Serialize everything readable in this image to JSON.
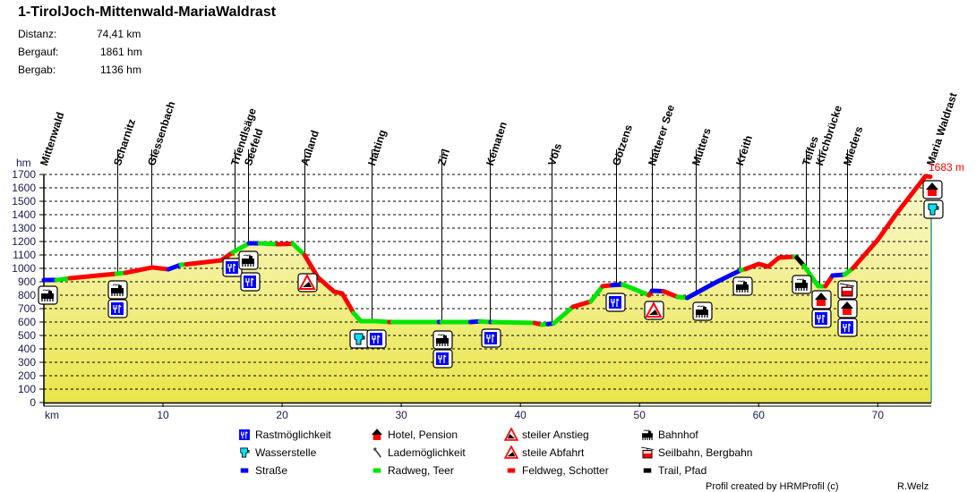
{
  "header": {
    "title": "1-TirolJoch-Mittenwald-MariaWaldrast",
    "stats": [
      {
        "label": "Distanz:",
        "value": "74,41 km"
      },
      {
        "label": "Bergauf:",
        "value": "1861 hm"
      },
      {
        "label": "Bergab:",
        "value": "1136 hm"
      }
    ]
  },
  "chart_data": {
    "type": "area",
    "ylabel": "hm",
    "xlabel": "km",
    "xlim": [
      0,
      74.41
    ],
    "ylim": [
      0,
      1700
    ],
    "yticks": [
      "0",
      "100",
      "200",
      "300",
      "400",
      "500",
      "600",
      "700",
      "800",
      "900",
      "1000",
      "1100",
      "1200",
      "1300",
      "1400",
      "1500",
      "1600",
      "1700"
    ],
    "xticks": [
      "10",
      "20",
      "30",
      "40",
      "50",
      "60",
      "70"
    ],
    "grid": true,
    "end_label": "1683 m",
    "colors": {
      "s": "#0000ff",
      "r": "#00e600",
      "f": "#ff0000",
      "t": "#000000",
      "fill_top": "#fbf9d2",
      "fill_bottom": "#e9e54a",
      "end_line": "#2a9a8a",
      "end_label": "#ff0000"
    },
    "profile": [
      [
        0,
        913,
        "s"
      ],
      [
        1.05,
        913,
        "s"
      ],
      [
        2.18,
        927,
        "r"
      ],
      [
        6.09,
        960,
        "f"
      ],
      [
        6.84,
        967,
        "r"
      ],
      [
        9.1,
        1007,
        "f"
      ],
      [
        10.45,
        993,
        "f"
      ],
      [
        11.5,
        1027,
        "s"
      ],
      [
        11.95,
        1030,
        "r"
      ],
      [
        14.89,
        1060,
        "f"
      ],
      [
        15.86,
        1120,
        "f"
      ],
      [
        17.22,
        1187,
        "r"
      ],
      [
        18.12,
        1187,
        "s"
      ],
      [
        19.62,
        1180,
        "r"
      ],
      [
        20.9,
        1183,
        "f"
      ],
      [
        21.88,
        1100,
        "r"
      ],
      [
        23.0,
        933,
        "f"
      ],
      [
        24.36,
        827,
        "f"
      ],
      [
        25.04,
        813,
        "f"
      ],
      [
        26.0,
        667,
        "f"
      ],
      [
        26.6,
        607,
        "r"
      ],
      [
        27.9,
        607,
        "r"
      ],
      [
        29.0,
        600,
        "r"
      ],
      [
        29.25,
        600,
        "f"
      ],
      [
        33.16,
        600,
        "r"
      ],
      [
        33.4,
        600,
        "s"
      ],
      [
        35.8,
        600,
        "r"
      ],
      [
        36.6,
        605,
        "s"
      ],
      [
        37.5,
        600,
        "r"
      ],
      [
        37.7,
        600,
        "s"
      ],
      [
        41.2,
        593,
        "r"
      ],
      [
        41.8,
        580,
        "f"
      ],
      [
        42.3,
        585,
        "r"
      ],
      [
        42.8,
        590,
        "s"
      ],
      [
        44.4,
        713,
        "r"
      ],
      [
        45.9,
        753,
        "f"
      ],
      [
        46.9,
        867,
        "r"
      ],
      [
        47.7,
        875,
        "f"
      ],
      [
        48.6,
        880,
        "s"
      ],
      [
        50.8,
        800,
        "r"
      ],
      [
        51.05,
        833,
        "f"
      ],
      [
        52.0,
        830,
        "s"
      ],
      [
        53.2,
        787,
        "f"
      ],
      [
        54.0,
        780,
        "r"
      ],
      [
        56.5,
        900,
        "s"
      ],
      [
        58.5,
        987,
        "s"
      ],
      [
        58.9,
        995,
        "r"
      ],
      [
        60.0,
        1033,
        "f"
      ],
      [
        60.8,
        1013,
        "f"
      ],
      [
        61.7,
        1080,
        "f"
      ],
      [
        63.0,
        1087,
        "f"
      ],
      [
        63.2,
        1080,
        "r"
      ],
      [
        63.8,
        1020,
        "t"
      ],
      [
        65.0,
        867,
        "r"
      ],
      [
        65.6,
        867,
        "r"
      ],
      [
        66.2,
        947,
        "f"
      ],
      [
        67.2,
        953,
        "s"
      ],
      [
        67.9,
        1000,
        "r"
      ],
      [
        70.0,
        1213,
        "f"
      ],
      [
        71.5,
        1400,
        "f"
      ],
      [
        74.0,
        1687,
        "f"
      ],
      [
        74.41,
        1683,
        "f"
      ]
    ],
    "places": [
      {
        "name": "Mittenwald",
        "km": 0,
        "icons": [
          "bahnhof"
        ]
      },
      {
        "name": "Scharnitz",
        "km": 6.2,
        "icons": [
          "bahnhof",
          "rast"
        ]
      },
      {
        "name": "Giessenbach",
        "km": 9.0,
        "icons": []
      },
      {
        "name": "Triendlsäge",
        "km": 16.0,
        "icons": [
          "rast"
        ]
      },
      {
        "name": "Seefeld",
        "km": 17.1,
        "icons": [
          "bahnhof",
          "rast"
        ]
      },
      {
        "name": "Auland",
        "km": 21.9,
        "icons": [
          "steile-abfahrt"
        ]
      },
      {
        "name": "Hatting",
        "km": 27.5,
        "icons": [
          "wasser",
          "rast"
        ]
      },
      {
        "name": "Zirl",
        "km": 33.4,
        "icons": [
          "bahnhof",
          "rast"
        ]
      },
      {
        "name": "Kematen",
        "km": 37.4,
        "icons": [
          "rast"
        ]
      },
      {
        "name": "Völs",
        "km": 42.6,
        "icons": []
      },
      {
        "name": "Götzens",
        "km": 48.0,
        "icons": [
          "rast"
        ]
      },
      {
        "name": "Natterer See",
        "km": 51.0,
        "icons": [
          "steile-abfahrt"
        ]
      },
      {
        "name": "Mutters",
        "km": 54.7,
        "icons": [
          "bahnhof"
        ]
      },
      {
        "name": "Kreith",
        "km": 58.4,
        "icons": [
          "bahnhof"
        ]
      },
      {
        "name": "Telfes",
        "km": 64.0,
        "icons": [
          "bahnhof"
        ]
      },
      {
        "name": "Kirchbrücke",
        "km": 65.1,
        "icons": [
          "hotel",
          "rast"
        ]
      },
      {
        "name": "Mieders",
        "km": 67.4,
        "icons": [
          "seilbahn",
          "hotel",
          "rast"
        ]
      },
      {
        "name": "Maria Waldrast",
        "km": 74.41,
        "icons": [
          "hotel",
          "wasser"
        ]
      }
    ]
  },
  "legend": [
    {
      "icon": "rast",
      "label": "Rastmöglichkeit"
    },
    {
      "icon": "hotel",
      "label": "Hotel, Pension"
    },
    {
      "icon": "steiler-anstieg",
      "label": "steiler Anstieg"
    },
    {
      "icon": "bahnhof",
      "label": "Bahnhof"
    },
    {
      "icon": "wasser",
      "label": "Wasserstelle"
    },
    {
      "icon": "lade",
      "label": "Lademöglichkeit"
    },
    {
      "icon": "steile-abfahrt",
      "label": "steile Abfahrt"
    },
    {
      "icon": "seilbahn",
      "label": "Seilbahn, Bergbahn"
    },
    {
      "icon": "strasse",
      "label": "Straße"
    },
    {
      "icon": "radweg",
      "label": "Radweg, Teer"
    },
    {
      "icon": "feldweg",
      "label": "Feldweg, Schotter"
    },
    {
      "icon": "trail",
      "label": "Trail, Pfad"
    }
  ],
  "footer": {
    "credit": "Profil created by HRMProfil (c)",
    "author": "R.Welz"
  }
}
